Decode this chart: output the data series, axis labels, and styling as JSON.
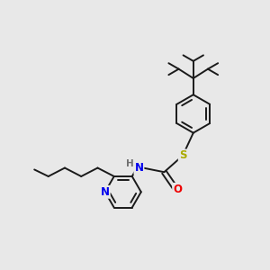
{
  "background_color": "#e8e8e8",
  "bond_color": "#1a1a1a",
  "bond_width": 1.4,
  "atom_colors": {
    "N": "#0000ee",
    "O": "#ee0000",
    "S": "#aaaa00",
    "H": "#707070",
    "C": "#1a1a1a"
  },
  "figsize": [
    3.0,
    3.0
  ],
  "dpi": 100
}
